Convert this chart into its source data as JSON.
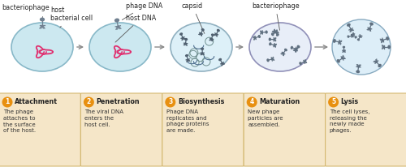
{
  "background_color": "#ffffff",
  "steps": [
    {
      "number": "1",
      "title": "Attachment",
      "text": "The phage\nattaches to\nthe surface\nof the host."
    },
    {
      "number": "2",
      "title": "Penetration",
      "text": "The viral DNA\nenters the\nhost cell."
    },
    {
      "number": "3",
      "title": "Biosynthesis",
      "text": "Phage DNA\nreplicates and\nphage proteins\nare made."
    },
    {
      "number": "4",
      "title": "Maturation",
      "text": "New phage\nparticles are\nassembled."
    },
    {
      "number": "5",
      "title": "Lysis",
      "text": "The cell lyses,\nreleasing the\nnewly made\nphages."
    }
  ],
  "box_color": "#f5e6c8",
  "box_edge_color": "#d4b870",
  "number_circle_color": "#e89010",
  "number_text_color": "#ffffff",
  "title_color": "#222222",
  "text_color": "#333333",
  "cell1_fill": "#cce8f0",
  "cell1_edge": "#88b8c8",
  "cell2_fill": "#f0d0dc",
  "cell2_edge": "#c888a0",
  "cell3_fill": "#ddf0f8",
  "cell3_edge": "#90b0c0",
  "cell4_fill": "#e8eef8",
  "cell4_edge": "#9090b8",
  "cell5_fill": "#ddeef8",
  "cell5_edge": "#88aac0",
  "dna_color": "#e03070",
  "phage_body_color": "#607080",
  "phage_leg_color": "#607080",
  "arrow_color": "#888888",
  "label_color": "#222222"
}
